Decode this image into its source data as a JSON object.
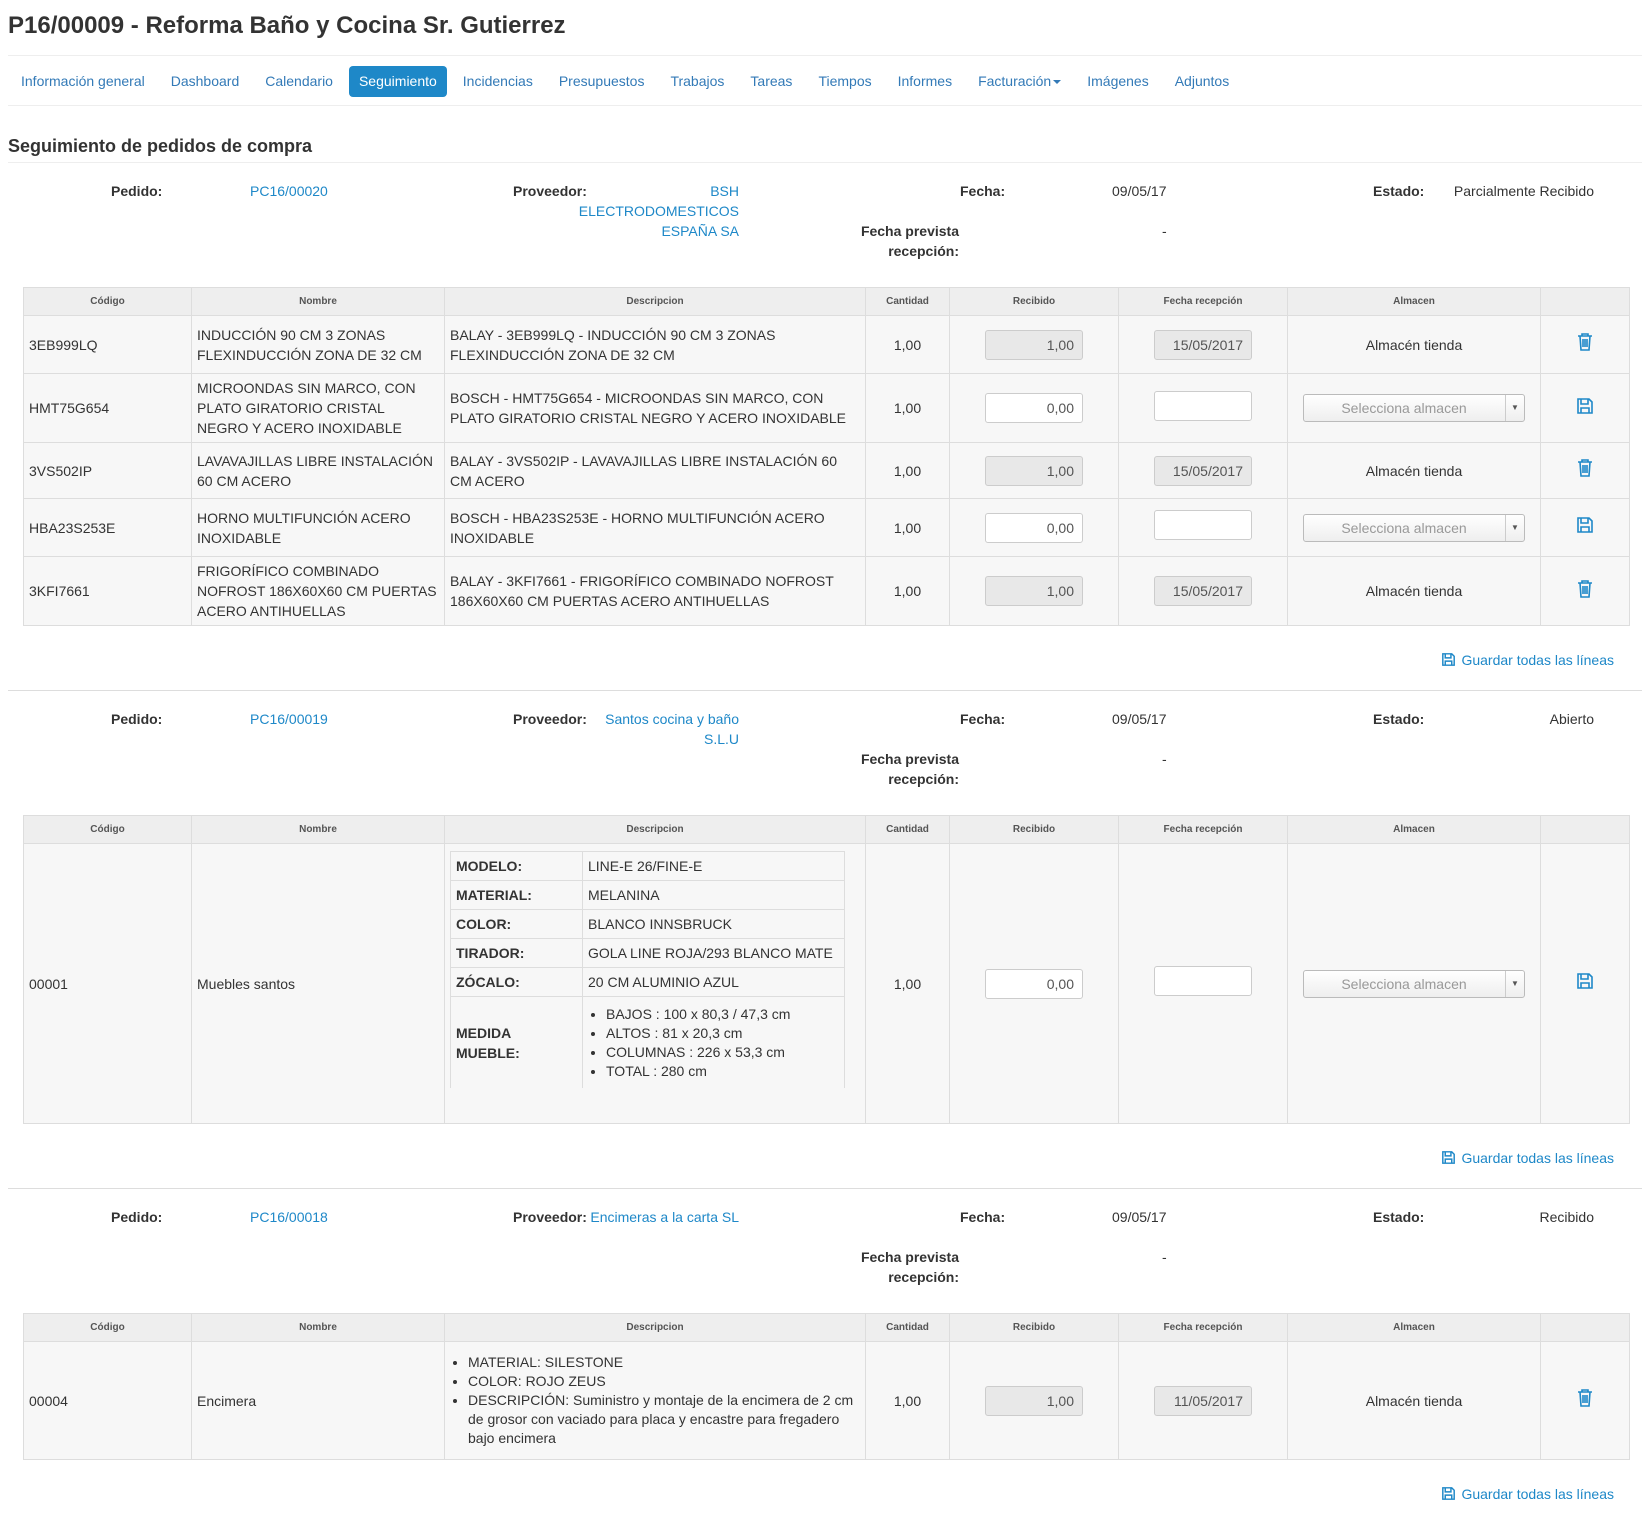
{
  "title": "P16/00009 - Reforma Baño y Cocina Sr. Gutierrez",
  "tabs": [
    {
      "label": "Información general"
    },
    {
      "label": "Dashboard"
    },
    {
      "label": "Calendario"
    },
    {
      "label": "Seguimiento",
      "active": true
    },
    {
      "label": "Incidencias"
    },
    {
      "label": "Presupuestos"
    },
    {
      "label": "Trabajos"
    },
    {
      "label": "Tareas"
    },
    {
      "label": "Tiempos"
    },
    {
      "label": "Informes"
    },
    {
      "label": "Facturación"
    },
    {
      "label": "Imágenes"
    },
    {
      "label": "Adjuntos"
    }
  ],
  "section_title": "Seguimiento de pedidos de compra",
  "labels": {
    "pedido": "Pedido:",
    "proveedor": "Proveedor:",
    "fecha": "Fecha:",
    "estado": "Estado:",
    "fecha_prevista_1": "Fecha prevista",
    "fecha_prevista_2": "recepción:",
    "save_all": "Guardar todas las líneas"
  },
  "columns": [
    "Código",
    "Nombre",
    "Descripcion",
    "Cantidad",
    "Recibido",
    "Fecha recepción",
    "Almacen",
    ""
  ],
  "select_placeholder": "Selecciona almacen",
  "colors": {
    "accent": "#1e88c8",
    "link": "#337ab7"
  },
  "orders": [
    {
      "pedido": "PC16/00020",
      "proveedor_lines": [
        "BSH",
        "ELECTRODOMESTICOS",
        "ESPAÑA SA"
      ],
      "fecha": "09/05/17",
      "estado": "Parcialmente Recibido",
      "fecha_prevista": "-",
      "lines": [
        {
          "codigo": "3EB999LQ",
          "nombre": "INDUCCIÓN 90 CM 3 ZONAS FLEXINDUCCIÓN ZONA DE 32 CM",
          "descripcion": "BALAY - 3EB999LQ - INDUCCIÓN 90 CM 3 ZONAS FLEXINDUCCIÓN ZONA DE 32 CM",
          "cantidad": "1,00",
          "recibido": "1,00",
          "fecha_recepcion": "15/05/2017",
          "almacen": "Almacén tienda",
          "received": true
        },
        {
          "codigo": "HMT75G654",
          "nombre": "MICROONDAS SIN MARCO, CON PLATO GIRATORIO CRISTAL NEGRO Y ACERO INOXIDABLE",
          "descripcion": "BOSCH - HMT75G654 - MICROONDAS SIN MARCO, CON PLATO GIRATORIO CRISTAL NEGRO Y ACERO INOXIDABLE",
          "cantidad": "1,00",
          "recibido": "0,00",
          "fecha_recepcion": "",
          "almacen": "",
          "received": false
        },
        {
          "codigo": "3VS502IP",
          "nombre": "LAVAVAJILLAS LIBRE INSTALACIÓN 60 CM ACERO",
          "descripcion": "BALAY - 3VS502IP - LAVAVAJILLAS LIBRE INSTALACIÓN 60 CM ACERO",
          "cantidad": "1,00",
          "recibido": "1,00",
          "fecha_recepcion": "15/05/2017",
          "almacen": "Almacén tienda",
          "received": true
        },
        {
          "codigo": "HBA23S253E",
          "nombre": "HORNO MULTIFUNCIÓN ACERO INOXIDABLE",
          "descripcion": "BOSCH - HBA23S253E - HORNO MULTIFUNCIÓN ACERO INOXIDABLE",
          "cantidad": "1,00",
          "recibido": "0,00",
          "fecha_recepcion": "",
          "almacen": "",
          "received": false
        },
        {
          "codigo": "3KFI7661",
          "nombre": "FRIGORÍFICO COMBINADO NOFROST 186X60X60 CM PUERTAS ACERO ANTIHUELLAS",
          "descripcion": "BALAY - 3KFI7661 - FRIGORÍFICO COMBINADO NOFROST 186X60X60 CM PUERTAS ACERO ANTIHUELLAS",
          "cantidad": "1,00",
          "recibido": "1,00",
          "fecha_recepcion": "15/05/2017",
          "almacen": "Almacén tienda",
          "received": true
        }
      ]
    },
    {
      "pedido": "PC16/00019",
      "proveedor_lines": [
        "Santos cocina y baño",
        "S.L.U"
      ],
      "fecha": "09/05/17",
      "estado": "Abierto",
      "fecha_prevista": "-",
      "line": {
        "codigo": "00001",
        "nombre": "Muebles santos",
        "cantidad": "1,00",
        "recibido": "0,00",
        "fecha_recepcion": "",
        "spec": [
          {
            "k": "MODELO:",
            "v": "LINE-E 26/FINE-E"
          },
          {
            "k": "MATERIAL:",
            "v": "MELANINA"
          },
          {
            "k": "COLOR:",
            "v": "BLANCO INNSBRUCK"
          },
          {
            "k": "TIRADOR:",
            "v": "GOLA LINE ROJA/293 BLANCO MATE"
          },
          {
            "k": "ZÓCALO:",
            "v": "20 CM ALUMINIO AZUL"
          }
        ],
        "medida_key": "MEDIDA MUEBLE:",
        "medida": [
          "BAJOS : 100 x 80,3 / 47,3 cm",
          "ALTOS : 81 x 20,3 cm",
          "COLUMNAS : 226 x 53,3 cm",
          "TOTAL : 280 cm"
        ]
      }
    },
    {
      "pedido": "PC16/00018",
      "proveedor_lines": [
        "Encimeras a la carta SL"
      ],
      "fecha": "09/05/17",
      "estado": "Recibido",
      "fecha_prevista": "-",
      "line": {
        "codigo": "00004",
        "nombre": "Encimera",
        "bullets": [
          "MATERIAL: SILESTONE",
          "COLOR: ROJO ZEUS",
          "DESCRIPCIÓN: Suministro y montaje de la encimera de 2 cm de grosor con vaciado para placa y encastre para fregadero bajo encimera"
        ],
        "cantidad": "1,00",
        "recibido": "1,00",
        "fecha_recepcion": "11/05/2017",
        "almacen": "Almacén tienda"
      }
    }
  ]
}
